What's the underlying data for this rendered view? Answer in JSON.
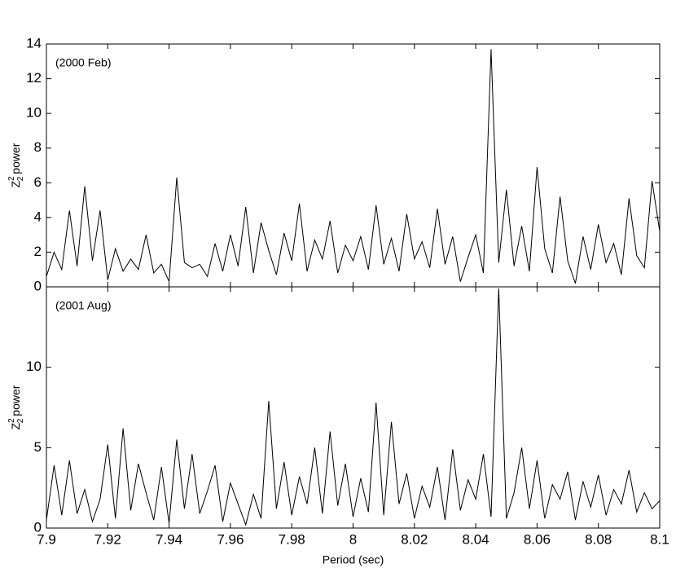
{
  "chart_data": [
    {
      "type": "line",
      "annotation": "(2000 Feb)",
      "ylabel": {
        "base": "Z",
        "sup": "2",
        "sub": "2",
        "rest": "power"
      },
      "x": [
        7.9,
        7.9025,
        7.905,
        7.9075,
        7.91,
        7.9125,
        7.915,
        7.9175,
        7.92,
        7.9225,
        7.925,
        7.9275,
        7.93,
        7.9325,
        7.935,
        7.9375,
        7.94,
        7.9425,
        7.945,
        7.9475,
        7.95,
        7.9525,
        7.955,
        7.9575,
        7.96,
        7.9625,
        7.965,
        7.9675,
        7.97,
        7.9725,
        7.975,
        7.9775,
        7.98,
        7.9825,
        7.985,
        7.9875,
        7.99,
        7.9925,
        7.995,
        7.9975,
        8.0,
        8.0025,
        8.005,
        8.0075,
        8.01,
        8.0125,
        8.015,
        8.0175,
        8.02,
        8.0225,
        8.025,
        8.0275,
        8.03,
        8.0325,
        8.035,
        8.0375,
        8.04,
        8.0425,
        8.045,
        8.0475,
        8.05,
        8.0525,
        8.055,
        8.0575,
        8.06,
        8.0625,
        8.065,
        8.0675,
        8.07,
        8.0725,
        8.075,
        8.0775,
        8.08,
        8.0825,
        8.085,
        8.0875,
        8.09,
        8.0925,
        8.095,
        8.0975,
        8.1
      ],
      "values": [
        0.6,
        2.0,
        1.0,
        4.4,
        1.2,
        5.8,
        1.5,
        4.4,
        0.4,
        2.2,
        0.9,
        1.6,
        1.0,
        3.0,
        0.8,
        1.3,
        0.3,
        6.3,
        1.4,
        1.1,
        1.3,
        0.6,
        2.5,
        0.9,
        3.0,
        1.2,
        4.6,
        0.8,
        3.7,
        2.1,
        0.7,
        3.1,
        1.5,
        4.8,
        0.9,
        2.7,
        1.6,
        3.8,
        0.8,
        2.4,
        1.5,
        2.9,
        1.0,
        4.7,
        1.3,
        2.8,
        0.9,
        4.2,
        1.6,
        2.6,
        1.1,
        4.5,
        1.3,
        2.9,
        0.3,
        1.7,
        3.0,
        0.8,
        13.7,
        1.4,
        5.6,
        1.2,
        3.5,
        0.9,
        6.9,
        2.2,
        0.8,
        5.2,
        1.5,
        0.2,
        2.9,
        1.0,
        3.6,
        1.4,
        2.5,
        0.7,
        5.1,
        1.8,
        1.1,
        6.1,
        3.2
      ],
      "color": "#000000",
      "xlim": [
        7.9,
        8.1
      ],
      "xticks": [
        7.9,
        7.92,
        7.94,
        7.96,
        7.98,
        8,
        8.02,
        8.04,
        8.06,
        8.08,
        8.1
      ],
      "ylim": [
        0,
        14
      ],
      "yticks": [
        0,
        2,
        4,
        6,
        8,
        10,
        12,
        14
      ]
    },
    {
      "type": "line",
      "annotation": "(2001 Aug)",
      "xlabel": "Period (sec)",
      "ylabel": {
        "base": "Z",
        "sup": "2",
        "sub": "2",
        "rest": "power"
      },
      "x": [
        7.9,
        7.9025,
        7.905,
        7.9075,
        7.91,
        7.9125,
        7.915,
        7.9175,
        7.92,
        7.9225,
        7.925,
        7.9275,
        7.93,
        7.9325,
        7.935,
        7.9375,
        7.94,
        7.9425,
        7.945,
        7.9475,
        7.95,
        7.9525,
        7.955,
        7.9575,
        7.96,
        7.9625,
        7.965,
        7.9675,
        7.97,
        7.9725,
        7.975,
        7.9775,
        7.98,
        7.9825,
        7.985,
        7.9875,
        7.99,
        7.9925,
        7.995,
        7.9975,
        8.0,
        8.0025,
        8.005,
        8.0075,
        8.01,
        8.0125,
        8.015,
        8.0175,
        8.02,
        8.0225,
        8.025,
        8.0275,
        8.03,
        8.0325,
        8.035,
        8.0375,
        8.04,
        8.0425,
        8.045,
        8.0475,
        8.05,
        8.0525,
        8.055,
        8.0575,
        8.06,
        8.0625,
        8.065,
        8.0675,
        8.07,
        8.0725,
        8.075,
        8.0775,
        8.08,
        8.0825,
        8.085,
        8.0875,
        8.09,
        8.0925,
        8.095,
        8.0975,
        8.1
      ],
      "values": [
        0.5,
        3.9,
        0.8,
        4.2,
        0.9,
        2.4,
        0.4,
        1.8,
        5.2,
        0.6,
        6.2,
        1.1,
        4.0,
        2.2,
        0.5,
        3.8,
        0.3,
        5.5,
        1.2,
        4.6,
        0.9,
        2.3,
        3.9,
        0.4,
        2.8,
        1.5,
        0.2,
        2.1,
        0.6,
        7.9,
        1.2,
        4.1,
        0.8,
        3.2,
        1.5,
        5.0,
        0.9,
        6.0,
        1.4,
        4.0,
        0.7,
        3.1,
        1.0,
        7.8,
        0.8,
        6.6,
        1.5,
        3.4,
        0.6,
        2.6,
        1.3,
        3.8,
        0.5,
        4.9,
        1.1,
        3.0,
        1.8,
        4.6,
        0.7,
        14.9,
        0.6,
        2.2,
        5.0,
        1.2,
        4.2,
        0.6,
        2.7,
        1.8,
        3.5,
        0.5,
        2.9,
        1.3,
        3.3,
        0.8,
        2.4,
        1.5,
        3.6,
        1.0,
        2.2,
        1.2,
        1.7
      ],
      "color": "#000000",
      "xlim": [
        7.9,
        8.1
      ],
      "xticks": [
        7.9,
        7.92,
        7.94,
        7.96,
        7.98,
        8,
        8.02,
        8.04,
        8.06,
        8.08,
        8.1
      ],
      "ylim": [
        0,
        15
      ],
      "yticks": [
        0,
        5,
        10
      ]
    }
  ]
}
